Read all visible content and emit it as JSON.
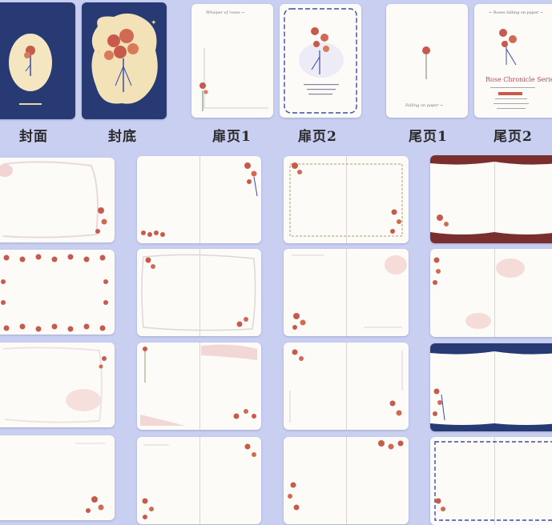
{
  "colors": {
    "background": "#c9cff0",
    "navy": "#283a74",
    "rose": "#c85a4b",
    "leaf": "#6d8a5a",
    "vine": "#3c4aa8",
    "burgundy": "#7a2f2f",
    "paper": "#fdfbf8"
  },
  "labels": {
    "cover": "封面",
    "back_cover": "封底",
    "front_page_1": "扉页1",
    "front_page_2": "扉页2",
    "end_page_1": "尾页1",
    "end_page_2": "尾页2"
  },
  "end_page_2": {
    "top_text": "~ Roses falling on paper ~",
    "series_title": "Rose Chronicle Series"
  }
}
